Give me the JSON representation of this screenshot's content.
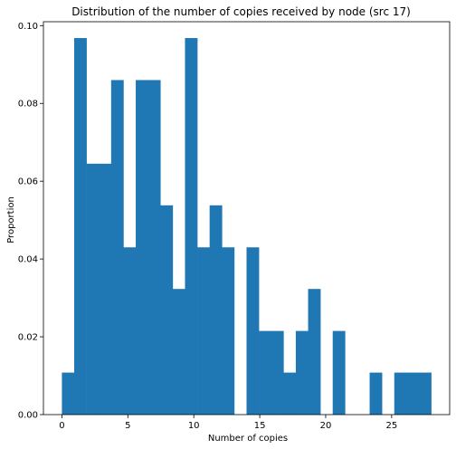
{
  "chart_data": {
    "type": "bar",
    "title": "Distribution of the number of copies received by node (src 17)",
    "xlabel": "Number of copies",
    "ylabel": "Proportion",
    "xlim": [
      -1.4,
      29.4
    ],
    "ylim": [
      0,
      0.101
    ],
    "xticks": [
      0,
      5,
      10,
      15,
      20,
      25
    ],
    "yticks": [
      0.0,
      0.02,
      0.04,
      0.06,
      0.08,
      0.1
    ],
    "ytick_labels": [
      "0.00",
      "0.02",
      "0.04",
      "0.06",
      "0.08",
      "0.10"
    ],
    "bin_width": 0.933,
    "bins": [
      {
        "x0": 0.0,
        "value": 0.0108
      },
      {
        "x0": 0.933,
        "value": 0.0968
      },
      {
        "x0": 1.867,
        "value": 0.0645
      },
      {
        "x0": 2.8,
        "value": 0.0645
      },
      {
        "x0": 3.733,
        "value": 0.086
      },
      {
        "x0": 4.667,
        "value": 0.043
      },
      {
        "x0": 5.6,
        "value": 0.086
      },
      {
        "x0": 6.533,
        "value": 0.086
      },
      {
        "x0": 7.467,
        "value": 0.0538
      },
      {
        "x0": 8.4,
        "value": 0.0323
      },
      {
        "x0": 9.333,
        "value": 0.0968
      },
      {
        "x0": 10.267,
        "value": 0.043
      },
      {
        "x0": 11.2,
        "value": 0.0538
      },
      {
        "x0": 12.133,
        "value": 0.043
      },
      {
        "x0": 13.067,
        "value": 0
      },
      {
        "x0": 14.0,
        "value": 0.043
      },
      {
        "x0": 14.933,
        "value": 0.0215
      },
      {
        "x0": 15.867,
        "value": 0.0215
      },
      {
        "x0": 16.8,
        "value": 0.0108
      },
      {
        "x0": 17.733,
        "value": 0.0215
      },
      {
        "x0": 18.667,
        "value": 0.0323
      },
      {
        "x0": 19.6,
        "value": 0
      },
      {
        "x0": 20.533,
        "value": 0.0215
      },
      {
        "x0": 21.467,
        "value": 0
      },
      {
        "x0": 22.4,
        "value": 0
      },
      {
        "x0": 23.333,
        "value": 0.0108
      },
      {
        "x0": 24.267,
        "value": 0
      },
      {
        "x0": 25.2,
        "value": 0.0108
      },
      {
        "x0": 26.133,
        "value": 0.0108
      },
      {
        "x0": 27.067,
        "value": 0.0108
      }
    ],
    "bar_color": "#1f77b4",
    "grid": false
  }
}
